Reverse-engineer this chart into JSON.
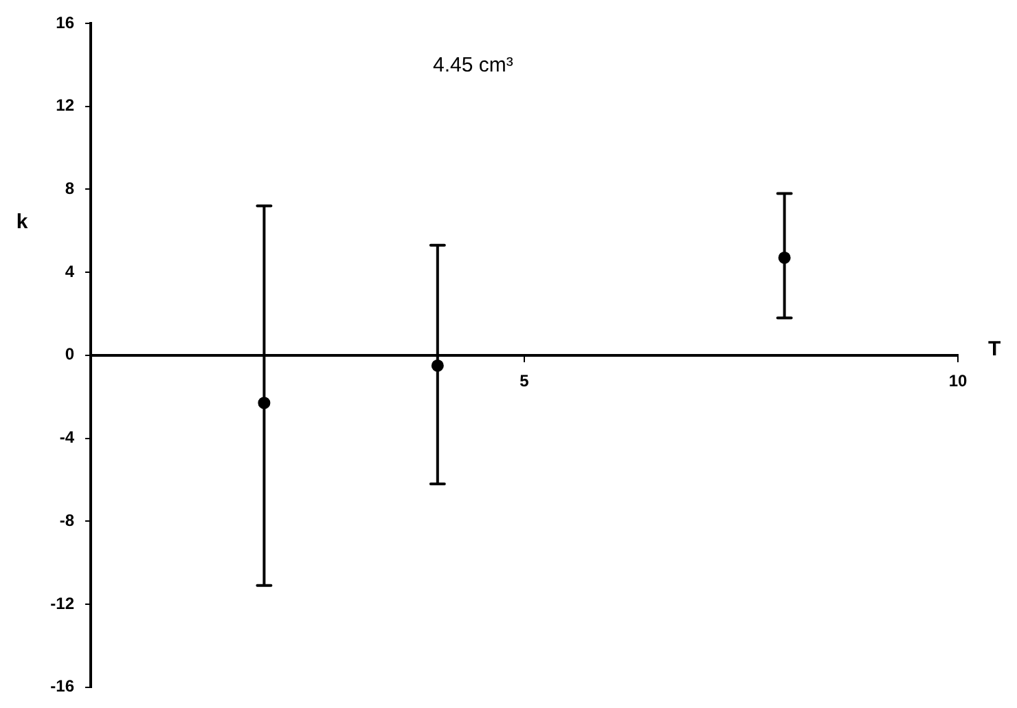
{
  "chart_data": {
    "type": "scatter",
    "annotations": [
      "4.45 cm³"
    ],
    "xlabel": "T",
    "ylabel": "k",
    "x": [
      2,
      4,
      8
    ],
    "series": [
      {
        "color": "#000000",
        "values": [
          -2.3,
          -0.5,
          4.7
        ],
        "errors": [
          [
            -11.1,
            7.2
          ],
          [
            -6.2,
            5.3
          ],
          [
            1.8,
            7.8
          ]
        ]
      }
    ],
    "xlim": [
      0,
      10
    ],
    "xticks": [
      5,
      10
    ],
    "ylim": [
      -16,
      16
    ],
    "yticks": [
      -16,
      -12,
      -8,
      -4,
      0,
      4,
      8,
      12,
      16
    ],
    "grid": false,
    "marker": "circle"
  }
}
